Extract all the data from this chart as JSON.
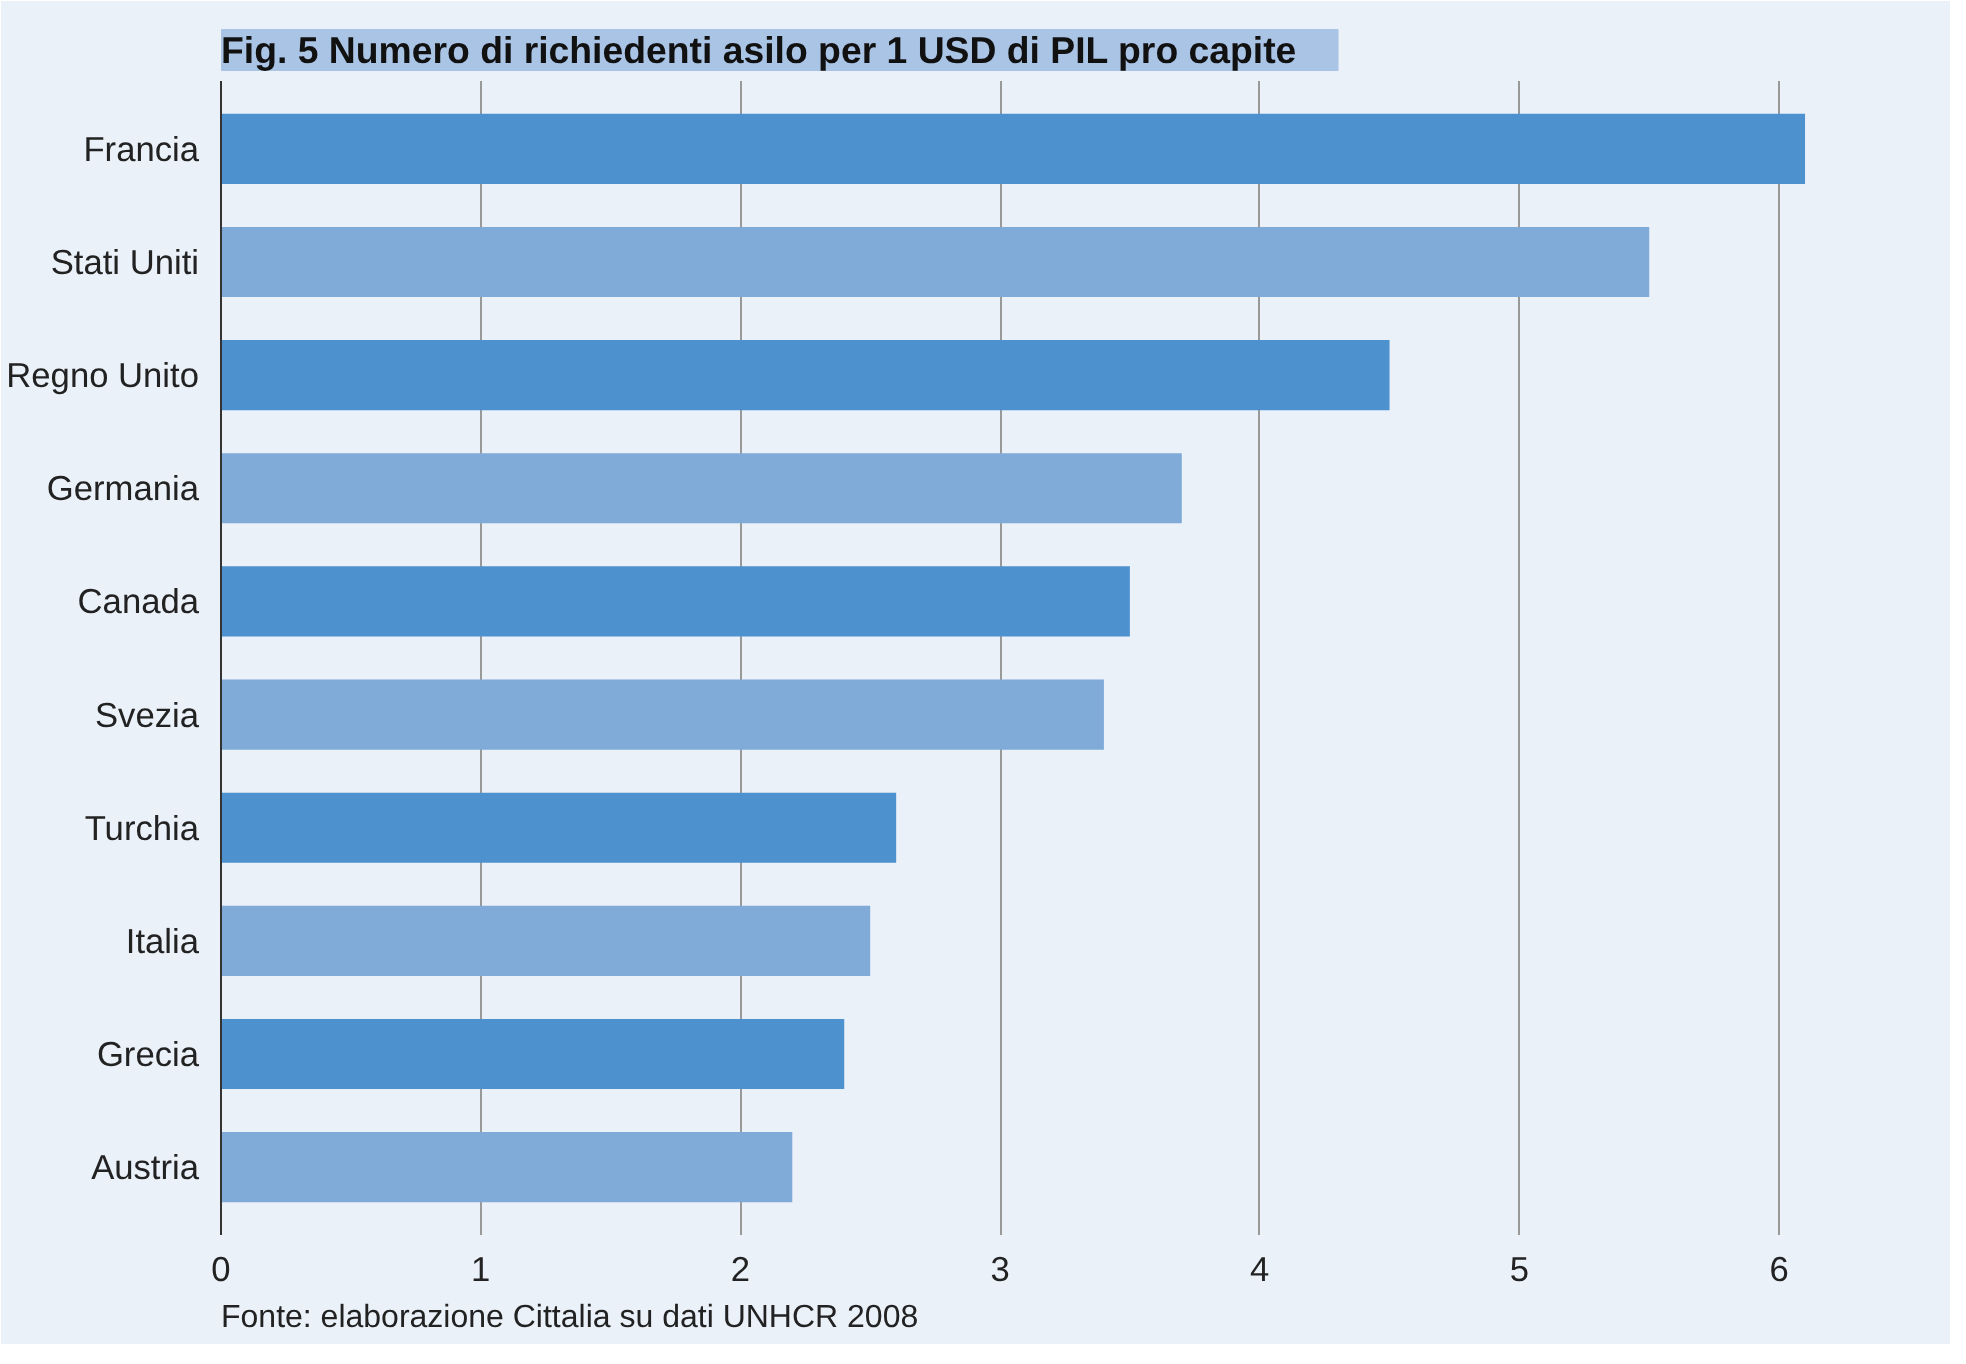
{
  "chart_data": {
    "type": "bar",
    "orientation": "horizontal",
    "title": "Fig. 5     Numero di richiedenti asilo per 1 USD di PIL pro capite",
    "categories": [
      "Francia",
      "Stati Uniti",
      "Regno Unito",
      "Germania",
      "Canada",
      "Svezia",
      "Turchia",
      "Italia",
      "Grecia",
      "Austria"
    ],
    "values": [
      6.1,
      5.5,
      4.5,
      3.7,
      3.5,
      3.4,
      2.6,
      2.5,
      2.4,
      2.2
    ],
    "colors": [
      "#4d91cf",
      "#80aad8",
      "#4d91cf",
      "#80aad8",
      "#4d91cf",
      "#80aad8",
      "#4d91cf",
      "#80aad8",
      "#4d91cf",
      "#80aad8"
    ],
    "xlim": [
      0,
      6.2
    ],
    "xticks": [
      0,
      1,
      2,
      3,
      4,
      5,
      6
    ],
    "grid": "x",
    "annotations": [
      "Fonte: elaborazione Cittalia su dati UNHCR 2008"
    ]
  }
}
